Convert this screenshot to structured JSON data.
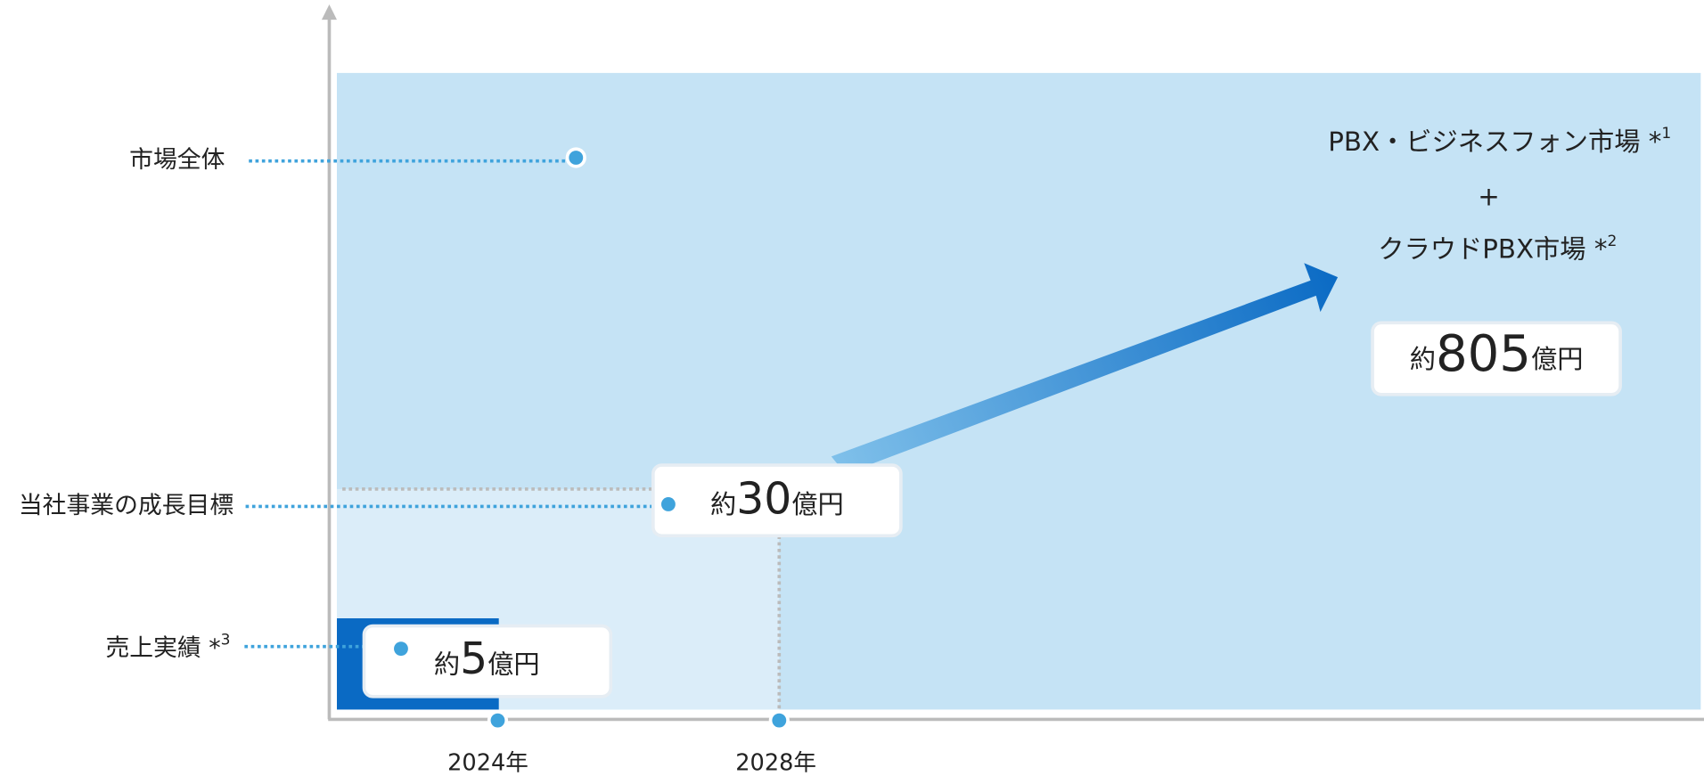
{
  "y_labels": [
    {
      "label": "市場全体"
    },
    {
      "label": "当社事業の成長目標"
    },
    {
      "label": "売上実績 *",
      "note": "3"
    }
  ],
  "market": {
    "line1": "PBX・ビジネスフォン市場 *",
    "note1": "1",
    "plus": "+",
    "line2": "クラウドPBX市場 *",
    "note2": "2",
    "value": {
      "prefix": "約",
      "amount": "805",
      "unit": "億円"
    }
  },
  "target": {
    "prefix": "約",
    "amount": "30",
    "unit": "億円"
  },
  "actual": {
    "prefix": "約",
    "amount": "5",
    "unit": "億円"
  },
  "x_labels": [
    "2024年",
    "2028年"
  ]
}
